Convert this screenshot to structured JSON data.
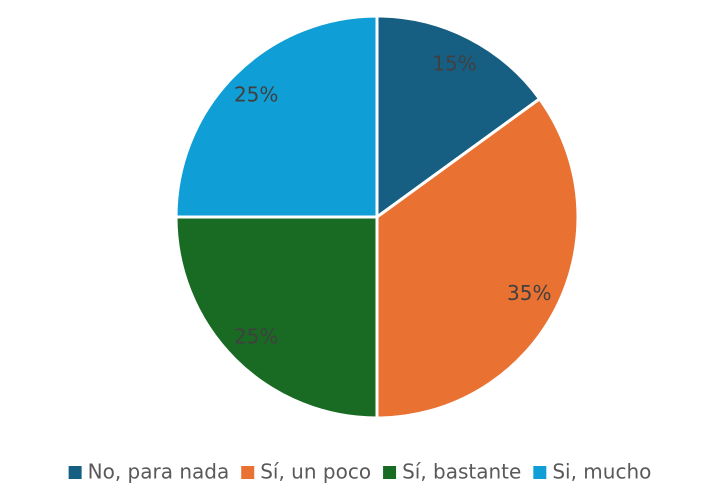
{
  "chart_data": {
    "type": "pie",
    "categories": [
      "No, para nada",
      "Sí, un poco",
      "Sí, bastante",
      "Si, mucho"
    ],
    "values": [
      15,
      35,
      25,
      25
    ],
    "value_labels": [
      "15%",
      "35%",
      "25%",
      "25%"
    ],
    "colors": [
      "#175f82",
      "#e97132",
      "#196b24",
      "#0f9ed5"
    ],
    "legend": "bottom"
  }
}
